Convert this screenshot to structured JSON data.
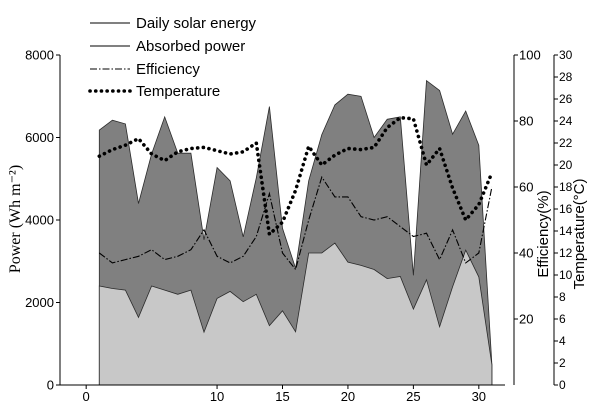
{
  "chart_data": {
    "type": "area",
    "x": [
      1,
      2,
      3,
      4,
      5,
      6,
      7,
      8,
      9,
      10,
      11,
      12,
      13,
      14,
      15,
      16,
      17,
      18,
      19,
      20,
      21,
      22,
      23,
      24,
      25,
      26,
      27,
      28,
      29,
      30,
      31
    ],
    "series": [
      {
        "name": "Daily solar energy",
        "axis": "power",
        "style": "area",
        "color": "#808080",
        "values": [
          6180,
          6420,
          6330,
          4400,
          5600,
          6500,
          5620,
          5620,
          3520,
          5270,
          4950,
          3590,
          5020,
          6750,
          3800,
          2830,
          4950,
          6070,
          6790,
          7050,
          7000,
          6000,
          6440,
          6500,
          2660,
          7380,
          7140,
          6080,
          6640,
          5810,
          490
        ]
      },
      {
        "name": "Absorbed power",
        "axis": "power",
        "style": "area",
        "color": "#c8c8c8",
        "values": [
          2400,
          2340,
          2300,
          1640,
          2400,
          2300,
          2200,
          2300,
          1280,
          2100,
          2270,
          2020,
          2200,
          1440,
          1800,
          1290,
          3200,
          3200,
          3440,
          2980,
          2900,
          2800,
          2580,
          2630,
          1840,
          2550,
          1410,
          2380,
          3270,
          2620,
          490
        ]
      },
      {
        "name": "Efficiency",
        "axis": "efficiency",
        "style": "dashdot",
        "color": "#000000",
        "values": [
          40,
          37,
          38,
          39,
          41,
          38,
          39,
          41,
          47,
          39,
          37,
          39,
          45,
          58,
          40,
          35,
          50,
          63,
          57,
          57,
          51,
          50,
          51,
          48,
          45,
          46,
          38,
          47,
          37,
          40,
          60
        ]
      },
      {
        "name": "Temperature",
        "axis": "temperature",
        "style": "dotted",
        "color": "#000000",
        "values": [
          20.8,
          21.4,
          21.8,
          22.4,
          21.0,
          20.4,
          21.2,
          21.5,
          21.6,
          21.3,
          21.0,
          21.2,
          22.0,
          13.7,
          14.8,
          17.7,
          21.7,
          20.0,
          20.9,
          21.5,
          21.4,
          21.6,
          23.4,
          24.3,
          24.2,
          20.0,
          21.5,
          17.9,
          15.0,
          16.4,
          19.3
        ]
      }
    ],
    "xlim": [
      -2,
      32
    ],
    "x_ticks": [
      "0",
      "10",
      "15",
      "20",
      "25",
      "30"
    ],
    "axes": {
      "power": {
        "label": "Power (Wh m⁻²)",
        "range": [
          0,
          8000
        ],
        "ticks": [
          "0",
          "2000",
          "4000",
          "6000",
          "8000"
        ]
      },
      "efficiency": {
        "label": "Efficiency(%)",
        "range": [
          0,
          100
        ],
        "ticks": [
          "20",
          "40",
          "60",
          "80",
          "100"
        ]
      },
      "temperature": {
        "label": "Temperature(°C)",
        "range": [
          0,
          30
        ],
        "ticks": [
          "0",
          "2",
          "4",
          "6",
          "8",
          "10",
          "12",
          "14",
          "16",
          "18",
          "20",
          "22",
          "24",
          "26",
          "28",
          "30"
        ]
      }
    },
    "legend": {
      "placement": "top-left",
      "entries": [
        "Daily solar energy",
        "Absorbed power",
        "Efficiency",
        "Temperature"
      ]
    },
    "grid": false
  }
}
